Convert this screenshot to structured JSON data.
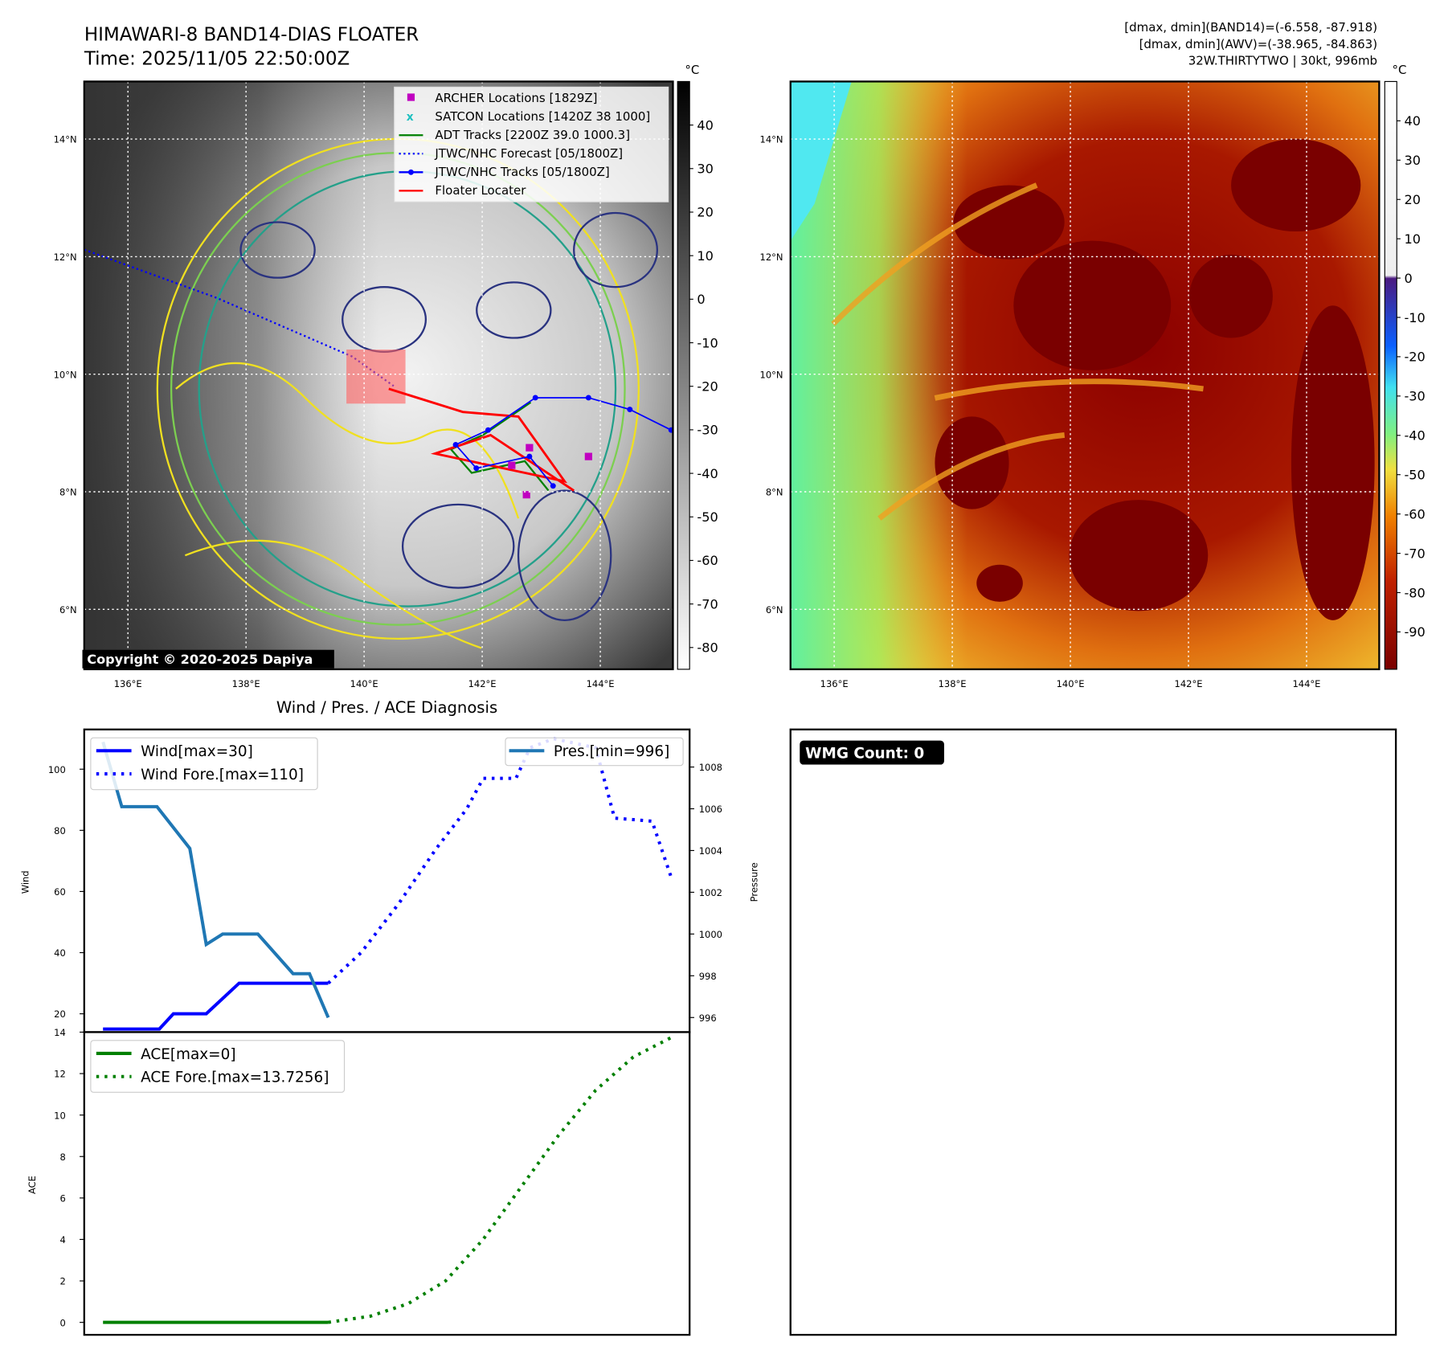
{
  "header": {
    "title": "HIMAWARI-8 BAND14-DIAS FLOATER",
    "time": "Time: 2025/11/05 22:50:00Z",
    "dmax_band14": "[dmax, dmin](BAND14)=(-6.558, -87.918)",
    "dmax_awv": "[dmax, dmin](AWV)=(-38.965, -84.863)",
    "storm": "32W.THIRTYTWO | 30kt, 996mb"
  },
  "maps": {
    "lon_ticks": [
      "136°E",
      "138°E",
      "140°E",
      "142°E",
      "144°E"
    ],
    "lon_values": [
      136,
      138,
      140,
      142,
      144
    ],
    "lat_ticks": [
      "14°N",
      "12°N",
      "10°N",
      "8°N",
      "6°N"
    ],
    "lat_values": [
      14,
      12,
      10,
      8,
      6
    ],
    "lon_range": [
      135.26,
      145.23
    ],
    "lat_range": [
      4.98,
      14.98
    ],
    "copyright": "Copyright © 2020-2025 Dapiya",
    "colorbar1": {
      "unit": "°C",
      "ticks": [
        40,
        30,
        20,
        10,
        0,
        -10,
        -20,
        -30,
        -40,
        -50,
        -60,
        -70,
        -80
      ],
      "range": [
        -85,
        50
      ]
    },
    "colorbar2": {
      "unit": "°C",
      "ticks": [
        40,
        30,
        20,
        10,
        0,
        -10,
        -20,
        -30,
        -40,
        -50,
        -60,
        -70,
        -80,
        -90
      ],
      "range": [
        -99.5,
        50
      ]
    },
    "legend": [
      {
        "label": "ARCHER Locations [1829Z]",
        "color": "#c000c0",
        "style": "square"
      },
      {
        "label": "SATCON Locations [1420Z 38 1000]",
        "color": "#20c0c0",
        "style": "x"
      },
      {
        "label": "ADT Tracks [2200Z 39.0 1000.3]",
        "color": "#008000",
        "style": "line"
      },
      {
        "label": "JTWC/NHC Forecast [05/1800Z]",
        "color": "#0000ff",
        "style": "dotted"
      },
      {
        "label": "JTWC/NHC Tracks [05/1800Z]",
        "color": "#0000ff",
        "style": "dotline"
      },
      {
        "label": "Floater Locater",
        "color": "#ff0000",
        "style": "line"
      }
    ],
    "jtwc_track": [
      [
        145.2,
        9.05
      ],
      [
        144.5,
        9.4
      ],
      [
        143.8,
        9.6
      ],
      [
        142.9,
        9.6
      ],
      [
        142.1,
        9.05
      ],
      [
        141.55,
        8.8
      ],
      [
        141.9,
        8.4
      ],
      [
        142.8,
        8.6
      ],
      [
        143.2,
        8.1
      ]
    ],
    "jtwc_forecast": [
      [
        135.26,
        12.12
      ],
      [
        137.5,
        11.3
      ],
      [
        139.8,
        10.3
      ],
      [
        140.5,
        9.8
      ]
    ],
    "archer_points": [
      [
        142.8,
        8.75
      ],
      [
        143.8,
        8.6
      ],
      [
        142.5,
        8.45
      ],
      [
        142.75,
        7.95
      ]
    ],
    "floater_box": [
      [
        139.7,
        10.42
      ],
      [
        140.7,
        9.5
      ]
    ]
  },
  "chart_data": [
    {
      "type": "line",
      "title": "Wind / Pres. / ACE Diagnosis",
      "xlabel": "",
      "ylabel": "Wind",
      "ylabel_right": "Pressure",
      "x_range": [
        -52,
        77
      ],
      "ylim": [
        14,
        113
      ],
      "y_ticks": [
        20,
        40,
        60,
        80,
        100
      ],
      "ylim_right": [
        995.3,
        1009.8
      ],
      "y_ticks_right": [
        996,
        998,
        1000,
        1002,
        1004,
        1006,
        1008
      ],
      "series": [
        {
          "name": "Wind[max=30]",
          "color": "#0000ff",
          "style": "solid",
          "x": [
            -48,
            -36,
            -33,
            -26,
            -19,
            0
          ],
          "values": [
            15,
            15,
            20,
            20,
            30,
            30
          ]
        },
        {
          "name": "Wind Fore.[max=110]",
          "color": "#0000ff",
          "style": "dotted",
          "x": [
            0,
            7,
            15,
            23,
            29.5,
            33,
            40,
            43,
            48,
            57,
            61,
            69,
            73
          ],
          "values": [
            30,
            40,
            56,
            74,
            87,
            97,
            97,
            107,
            110,
            107,
            84,
            83,
            65
          ]
        },
        {
          "name": "Pres.[min=996]",
          "color": "#1f77b4",
          "style": "solid",
          "axis": "right",
          "x": [
            -48,
            -44,
            -36.5,
            -29.5,
            -26,
            -22.5,
            -15,
            -7.5,
            -4,
            0
          ],
          "values": [
            1009.2,
            1006.1,
            1006.1,
            1004.1,
            999.5,
            1000.0,
            1000.0,
            998.1,
            998.1,
            996.0
          ]
        }
      ]
    },
    {
      "type": "line",
      "ylabel": "ACE",
      "x_range": [
        -52,
        77
      ],
      "ylim": [
        -0.6,
        14
      ],
      "y_ticks": [
        0,
        2,
        4,
        6,
        8,
        10,
        12,
        14
      ],
      "series": [
        {
          "name": "ACE[max=0]",
          "color": "#008000",
          "style": "solid",
          "x": [
            -48,
            0
          ],
          "values": [
            0,
            0
          ]
        },
        {
          "name": "ACE Fore.[max=13.7256]",
          "color": "#008000",
          "style": "dotted",
          "x": [
            0,
            9,
            17,
            25,
            33,
            41,
            49,
            57,
            65,
            73
          ],
          "values": [
            0,
            0.3,
            0.9,
            2,
            4,
            6.5,
            9,
            11.2,
            12.8,
            13.73
          ]
        }
      ]
    }
  ],
  "wmg": {
    "label": "WMG Count: 0"
  }
}
